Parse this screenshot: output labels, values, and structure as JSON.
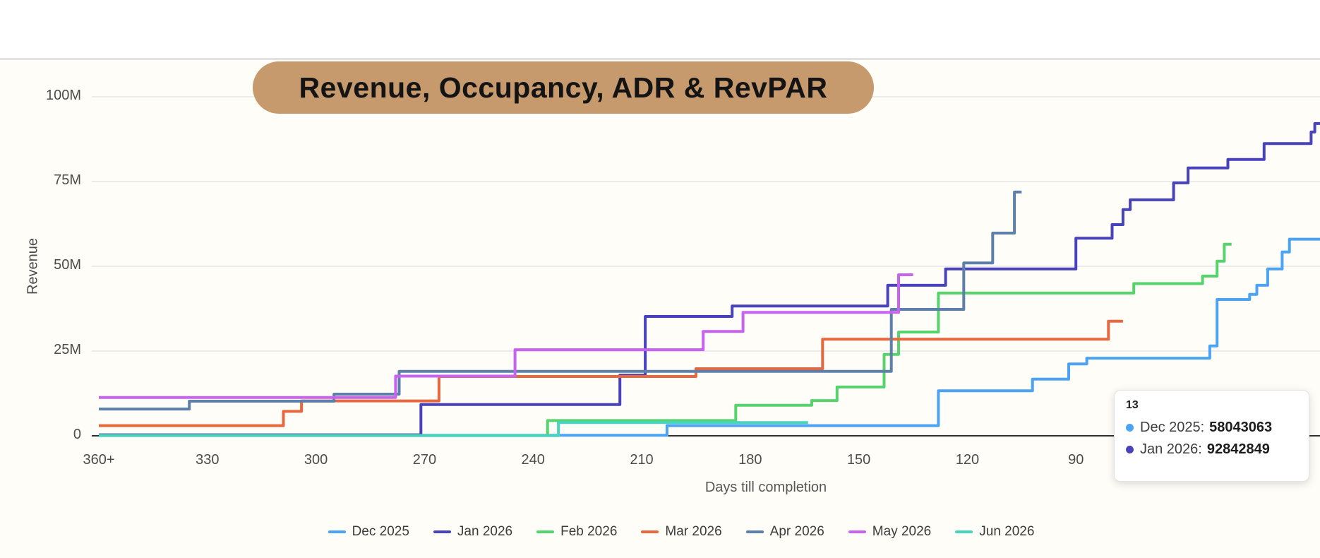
{
  "title": {
    "text": "Revenue, Occupancy, ADR & RevPAR",
    "bg": "#c69a6c",
    "text_color": "#141414"
  },
  "chart_data": {
    "type": "line",
    "step": true,
    "title": "Revenue, Occupancy, ADR & RevPAR",
    "y_unit": "millions",
    "grid": "horizontal",
    "legend_position": "bottom",
    "x_axis": {
      "title": "Days till completion",
      "direction": "descending",
      "ticks": [
        {
          "day": 360,
          "label": "360+"
        },
        {
          "day": 330,
          "label": "330"
        },
        {
          "day": 300,
          "label": "300"
        },
        {
          "day": 270,
          "label": "270"
        },
        {
          "day": 240,
          "label": "240"
        },
        {
          "day": 210,
          "label": "210"
        },
        {
          "day": 180,
          "label": "180"
        },
        {
          "day": 150,
          "label": "150"
        },
        {
          "day": 120,
          "label": "120"
        },
        {
          "day": 90,
          "label": "90"
        }
      ]
    },
    "y_axis": {
      "title": "Revenue",
      "ylim": [
        0,
        100
      ],
      "ticks": [
        {
          "value": 0,
          "label": "0"
        },
        {
          "value": 25,
          "label": "25M"
        },
        {
          "value": 50,
          "label": "50M"
        },
        {
          "value": 75,
          "label": "75M"
        },
        {
          "value": 100,
          "label": "100M"
        }
      ]
    },
    "series": [
      {
        "name": "Dec 2025",
        "color": "#4da3f3",
        "points": [
          [
            360,
            0.15
          ],
          [
            203,
            3.0
          ],
          [
            128,
            13.3
          ],
          [
            102,
            16.7
          ],
          [
            92,
            21.2
          ],
          [
            87,
            22.9
          ],
          [
            53,
            26.5
          ],
          [
            51,
            40.2
          ],
          [
            42,
            41.7
          ],
          [
            40,
            44.4
          ],
          [
            37,
            49.2
          ],
          [
            33,
            54.2
          ],
          [
            31,
            58.0
          ],
          [
            13,
            58.043063
          ]
        ]
      },
      {
        "name": "Jan 2026",
        "color": "#4843bc",
        "points": [
          [
            360,
            0.3
          ],
          [
            271,
            9.2
          ],
          [
            216,
            17.9
          ],
          [
            209,
            35.2
          ],
          [
            185,
            38.3
          ],
          [
            142,
            44.4
          ],
          [
            126,
            49.2
          ],
          [
            90,
            58.3
          ],
          [
            80,
            62.3
          ],
          [
            77,
            66.7
          ],
          [
            75,
            69.6
          ],
          [
            63,
            74.6
          ],
          [
            59,
            79.0
          ],
          [
            48,
            81.5
          ],
          [
            38,
            86.2
          ],
          [
            25,
            89.6
          ],
          [
            24,
            92.1
          ],
          [
            13,
            92.842849
          ]
        ]
      },
      {
        "name": "Feb 2026",
        "color": "#57d36d",
        "points": [
          [
            360,
            0.1
          ],
          [
            236,
            4.5
          ],
          [
            184,
            9.0
          ],
          [
            163,
            10.4
          ],
          [
            156,
            14.4
          ],
          [
            143,
            24.0
          ],
          [
            139,
            30.6
          ],
          [
            128,
            42.1
          ],
          [
            74,
            44.9
          ],
          [
            55,
            47.1
          ],
          [
            51,
            51.5
          ],
          [
            49,
            56.5
          ],
          [
            47,
            56.5
          ]
        ]
      },
      {
        "name": "Mar 2026",
        "color": "#e7683f",
        "points": [
          [
            360,
            3.0
          ],
          [
            309,
            7.2
          ],
          [
            304,
            10.3
          ],
          [
            266,
            17.5
          ],
          [
            195,
            19.8
          ],
          [
            160,
            28.5
          ],
          [
            81,
            33.8
          ],
          [
            77,
            33.8
          ]
        ]
      },
      {
        "name": "Apr 2026",
        "color": "#5c80aa",
        "points": [
          [
            360,
            7.9
          ],
          [
            335,
            10.2
          ],
          [
            295,
            12.3
          ],
          [
            277,
            19.0
          ],
          [
            141,
            37.3
          ],
          [
            121,
            51.0
          ],
          [
            113,
            59.8
          ],
          [
            107,
            71.9
          ],
          [
            105,
            71.9
          ]
        ]
      },
      {
        "name": "May 2026",
        "color": "#c763ee",
        "points": [
          [
            360,
            11.3
          ],
          [
            278,
            17.6
          ],
          [
            245,
            25.4
          ],
          [
            193,
            30.8
          ],
          [
            182,
            36.4
          ],
          [
            139,
            47.5
          ],
          [
            135,
            47.5
          ]
        ]
      },
      {
        "name": "Jun 2026",
        "color": "#49d5bd",
        "points": [
          [
            360,
            0.05
          ],
          [
            233,
            3.9
          ],
          [
            164,
            3.9
          ]
        ]
      }
    ]
  },
  "tooltip": {
    "title": "13",
    "rows": [
      {
        "label": "Dec 2025:",
        "value": "58043063",
        "color": "#4da3f3"
      },
      {
        "label": "Jan 2026:",
        "value": "92842849",
        "color": "#4843bc"
      }
    ]
  },
  "colors": {
    "axis_line": "#303030",
    "gridline": "#ebebeb",
    "divider": "#e2e2e2",
    "tick_text": "#4c4c4c"
  }
}
